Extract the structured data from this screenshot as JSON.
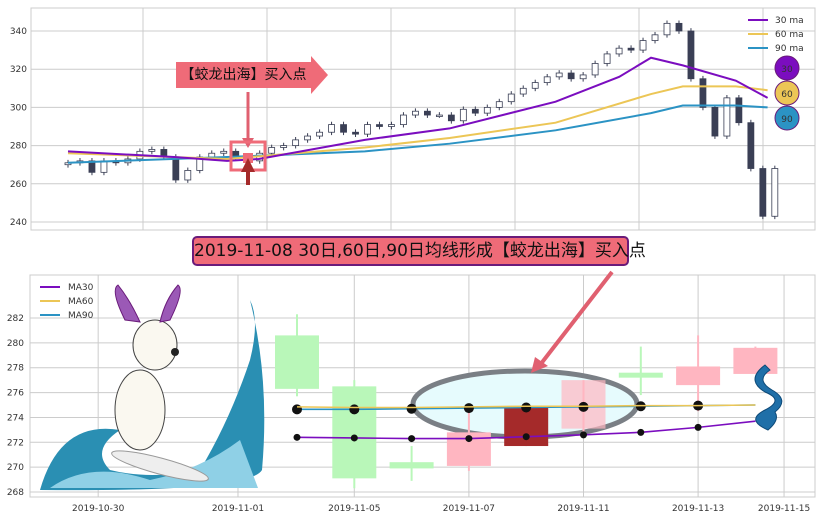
{
  "chart_data": [
    {
      "type": "candlestick",
      "title": "",
      "ylim": [
        235,
        352
      ],
      "y_ticks": [
        240,
        260,
        280,
        300,
        320,
        340
      ],
      "grid": true,
      "legend_placement": "top-right",
      "legend": [
        "30 ma",
        "60 ma",
        "90 ma"
      ],
      "closes": [
        271,
        272,
        266,
        272,
        271,
        273,
        277,
        278,
        274,
        262,
        267,
        274,
        276,
        277,
        274,
        272,
        276,
        279,
        280,
        283,
        285,
        287,
        291,
        287,
        286,
        291,
        290,
        291,
        296,
        298,
        296,
        296,
        293,
        299,
        297,
        300,
        303,
        307,
        310,
        313,
        316,
        318,
        315,
        317,
        323,
        328,
        331,
        330,
        335,
        338,
        344,
        340,
        315,
        300,
        285,
        305,
        292,
        268,
        243,
        268
      ],
      "ma30": [
        [
          0,
          277
        ],
        [
          10,
          274
        ],
        [
          15,
          272
        ],
        [
          18,
          273
        ],
        [
          28,
          283
        ],
        [
          36,
          289
        ],
        [
          46,
          303
        ],
        [
          52,
          316
        ],
        [
          55,
          326
        ],
        [
          58,
          322
        ],
        [
          63,
          314
        ],
        [
          66,
          305
        ]
      ],
      "ma60": [
        [
          0,
          276
        ],
        [
          15,
          273
        ],
        [
          28,
          279
        ],
        [
          36,
          284
        ],
        [
          46,
          292
        ],
        [
          55,
          307
        ],
        [
          58,
          311
        ],
        [
          63,
          311
        ],
        [
          66,
          309
        ]
      ],
      "ma90": [
        [
          0,
          271
        ],
        [
          15,
          274
        ],
        [
          28,
          277
        ],
        [
          36,
          281
        ],
        [
          46,
          288
        ],
        [
          55,
          297
        ],
        [
          58,
          301
        ],
        [
          63,
          301
        ],
        [
          66,
          300
        ]
      ],
      "series_colors": {
        "ma30": "#7b0dbf",
        "ma60": "#ecc656",
        "ma90": "#2b93c4",
        "up": "#ffffff",
        "down": "#3a3f55"
      },
      "badges": [
        "30",
        "60",
        "90"
      ],
      "annotation": "【蛟龙出海】买入点"
    },
    {
      "type": "candlestick",
      "title": "2019-11-08 30日,60日,90日均线形成【蛟龙出海】买入点",
      "ylim": [
        267.6,
        283
      ],
      "y_ticks": [
        268,
        270,
        272,
        274,
        276,
        278,
        280,
        282
      ],
      "x_ticks": [
        "2019-10-30",
        "2019-11-01",
        "2019-11-05",
        "2019-11-07",
        "2019-11-11",
        "2019-11-13",
        "2019-11-15"
      ],
      "grid": true,
      "legend_placement": "top-left",
      "legend": [
        "MA30",
        "MA60",
        "MA90"
      ],
      "candles": [
        {
          "date": "2019-11-04",
          "low": 275.7,
          "high": 282.3,
          "body": [
            276.3,
            280.6
          ],
          "color": "#b9f7b9"
        },
        {
          "date": "2019-11-05",
          "low": 268.3,
          "high": 277.0,
          "body": [
            269.1,
            276.5
          ],
          "color": "#b9f7b9"
        },
        {
          "date": "2019-11-06",
          "low": 268.9,
          "high": 271.7,
          "body": [
            269.9,
            270.4
          ],
          "color": "#b9f7b9"
        },
        {
          "date": "2019-11-07",
          "low": 269.7,
          "high": 274.8,
          "body": [
            270.1,
            272.8
          ],
          "color": "#ffb6c1"
        },
        {
          "date": "2019-11-08",
          "low": 271.7,
          "high": 275.0,
          "body": [
            271.7,
            274.9
          ],
          "color": "#a52a2a"
        },
        {
          "date": "2019-11-11",
          "low": 272.5,
          "high": 277.0,
          "body": [
            273.1,
            277.0
          ],
          "color": "#ffb6c1"
        },
        {
          "date": "2019-11-12",
          "low": 275.8,
          "high": 279.7,
          "body": [
            277.2,
            277.6
          ],
          "color": "#b9f7b9"
        },
        {
          "date": "2019-11-13",
          "low": 274.5,
          "high": 280.6,
          "body": [
            276.6,
            278.1
          ],
          "color": "#ffb6c1"
        },
        {
          "date": "2019-11-14",
          "low": 277.5,
          "high": 279.7,
          "body": [
            277.5,
            279.6
          ],
          "color": "#ffb6c1"
        }
      ],
      "ma30": [
        272.4,
        272.35,
        272.3,
        272.3,
        272.45,
        272.6,
        272.8,
        273.2,
        273.7
      ],
      "ma60": [
        274.85,
        274.8,
        274.8,
        274.85,
        274.9,
        274.9,
        274.95,
        274.95,
        275.0
      ],
      "ma90": [
        274.65,
        274.65,
        274.7,
        274.75,
        274.8,
        274.85,
        274.9,
        274.95,
        275.0
      ],
      "series_colors": {
        "ma30": "#7b0dbf",
        "ma60": "#ecc656",
        "ma90": "#2b93c4"
      }
    }
  ]
}
